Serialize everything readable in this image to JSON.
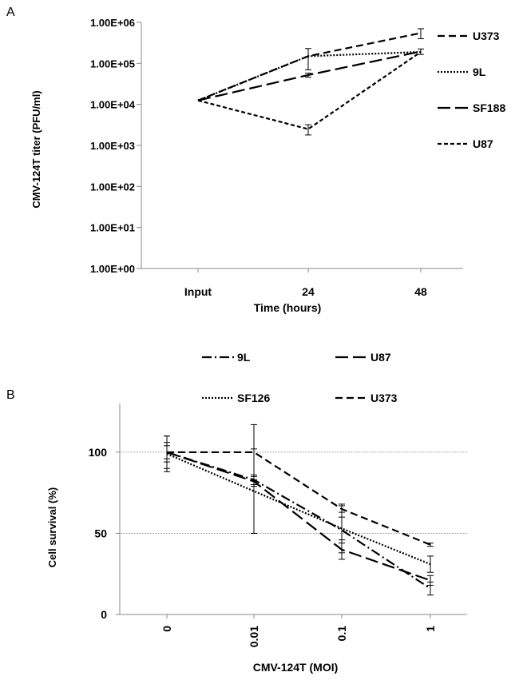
{
  "chart_data": [
    {
      "panel_label": "A",
      "type": "line",
      "xlabel": "Time (hours)",
      "ylabel": "CMV-124T  titer (PFU/ml)",
      "categories": [
        "Input",
        "24",
        "48"
      ],
      "y_scale": "log",
      "ylim": [
        1,
        1000000
      ],
      "y_ticks": [
        1,
        10,
        100,
        1000,
        10000,
        100000,
        1000000
      ],
      "y_tick_labels": [
        "1.00E+00",
        "1.00E+01",
        "1.00E+02",
        "1.00E+03",
        "1.00E+04",
        "1.00E+05",
        "1.00E+06"
      ],
      "grid": false,
      "legend": "right",
      "series": [
        {
          "name": "U373",
          "style": "dashed",
          "values": [
            12500,
            150000,
            550000
          ],
          "errors": [
            0,
            80000,
            150000
          ]
        },
        {
          "name": "9L",
          "style": "dotted",
          "values": [
            12500,
            150000,
            190000
          ],
          "errors": [
            0,
            0,
            0
          ]
        },
        {
          "name": "SF188",
          "style": "longdash",
          "values": [
            12500,
            52000,
            195000
          ],
          "errors": [
            0,
            6000,
            30000
          ]
        },
        {
          "name": "U87",
          "style": "shortdash",
          "values": [
            12500,
            2500,
            190000
          ],
          "errors": [
            0,
            700,
            0
          ]
        }
      ]
    },
    {
      "panel_label": "B",
      "type": "line",
      "xlabel": "CMV-124T (MOI)",
      "ylabel": "Cell survival (%)",
      "categories": [
        "0",
        "0.01",
        "0.1",
        "1"
      ],
      "ylim": [
        0,
        130
      ],
      "y_ticks": [
        0,
        50,
        100
      ],
      "y_tick_labels": [
        "0",
        "50",
        "100"
      ],
      "gridlines": [
        50,
        100
      ],
      "legend": "top",
      "series": [
        {
          "name": "9L",
          "style": "dashdot",
          "values": [
            100,
            83,
            52,
            16
          ],
          "errors": [
            6,
            3,
            8,
            4
          ]
        },
        {
          "name": "U87",
          "style": "longdash",
          "values": [
            100,
            82,
            40,
            21
          ],
          "errors": [
            10,
            3,
            6,
            3
          ]
        },
        {
          "name": "SF126",
          "style": "dotted",
          "values": [
            99,
            76,
            53,
            31
          ],
          "errors": [
            11,
            26,
            15,
            5
          ]
        },
        {
          "name": "U373",
          "style": "dashed",
          "values": [
            100,
            100,
            65,
            43
          ],
          "errors": [
            4,
            17,
            2,
            1
          ]
        }
      ]
    }
  ]
}
